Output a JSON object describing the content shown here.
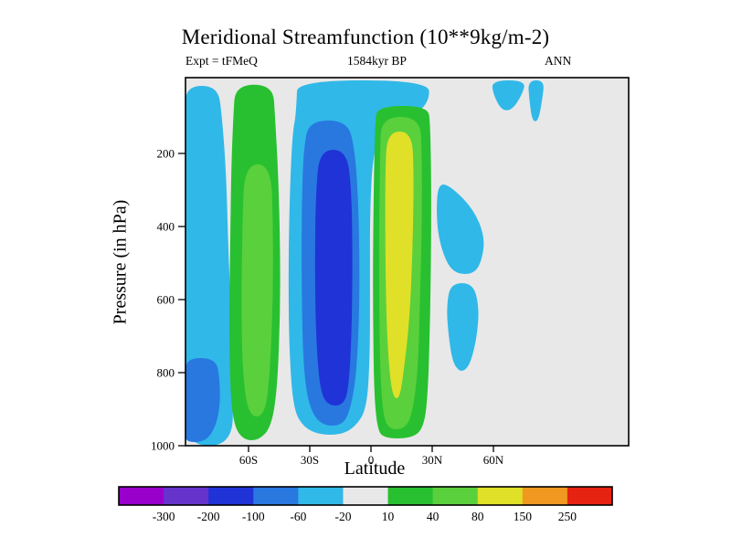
{
  "chart_data": {
    "type": "contour",
    "title": "Meridional Streamfunction (10**9kg/m-2)",
    "annotations": {
      "left": "Expt = tFMeQ",
      "center": "1584kyr BP",
      "right": "ANN"
    },
    "xlabel": "Latitude",
    "ylabel": "Pressure (in hPa)",
    "x_ticks": [
      {
        "value": -60,
        "label": "60S"
      },
      {
        "value": -30,
        "label": "30S"
      },
      {
        "value": 0,
        "label": "0"
      },
      {
        "value": 30,
        "label": "30N"
      },
      {
        "value": 60,
        "label": "60N"
      }
    ],
    "y_ticks": [
      {
        "value": 200,
        "label": "200"
      },
      {
        "value": 400,
        "label": "400"
      },
      {
        "value": 600,
        "label": "600"
      },
      {
        "value": 800,
        "label": "800"
      },
      {
        "value": 1000,
        "label": "1000"
      }
    ],
    "y_axis_range_hpa": [
      0,
      1000
    ],
    "background_band": "-20 to 10",
    "colorbar": {
      "levels": [
        "-300",
        "-200",
        "-100",
        "-60",
        "-20",
        "10",
        "40",
        "80",
        "150",
        "250"
      ],
      "colors": [
        "#9900cc",
        "#6633cc",
        "#2033d6",
        "#2878e0",
        "#30b8e8",
        "#e8e8e8",
        "#28c030",
        "#5ad03c",
        "#e0e028",
        "#f09820",
        "#e62211"
      ]
    },
    "regions": [
      {
        "name": "sh-polar-cyan",
        "band": "-60 to -20",
        "color": 4,
        "stops": [
          [
            15,
            -91,
            -75
          ],
          [
            100,
            -91,
            -73
          ],
          [
            250,
            -91,
            -71
          ],
          [
            450,
            -91,
            -70
          ],
          [
            650,
            -91,
            -68.5
          ],
          [
            850,
            -91,
            -67.5
          ],
          [
            1000,
            -91,
            -68
          ]
        ]
      },
      {
        "name": "sh-polar-blue-core",
        "band": "-100 to -60",
        "color": 3,
        "stops": [
          [
            760,
            -91,
            -76
          ],
          [
            820,
            -91,
            -74
          ],
          [
            900,
            -91,
            -74
          ],
          [
            960,
            -91,
            -77
          ],
          [
            990,
            -91,
            -82
          ]
        ]
      },
      {
        "name": "sh-ferrel-green",
        "band": "10 to 40",
        "color": 6,
        "stops": [
          [
            12,
            -66.5,
            -48
          ],
          [
            100,
            -67.5,
            -47
          ],
          [
            250,
            -68.5,
            -45.5
          ],
          [
            450,
            -69,
            -44.5
          ],
          [
            650,
            -69.5,
            -44.5
          ],
          [
            850,
            -69,
            -46
          ],
          [
            950,
            -67,
            -49
          ],
          [
            985,
            -62,
            -55
          ]
        ]
      },
      {
        "name": "sh-ferrel-green-core",
        "band": "40 to 80",
        "color": 7,
        "stops": [
          [
            230,
            -62,
            -49
          ],
          [
            400,
            -63,
            -48
          ],
          [
            600,
            -63.5,
            -48
          ],
          [
            800,
            -63,
            -49.5
          ],
          [
            920,
            -60,
            -52
          ]
        ]
      },
      {
        "name": "sh-hadley-cyan",
        "band": "-60 to -20",
        "color": 4,
        "stops": [
          [
            0,
            -36,
            28.5
          ],
          [
            60,
            -36.5,
            28.5
          ],
          [
            100,
            -37,
            20
          ],
          [
            130,
            -38,
            6
          ],
          [
            200,
            -39,
            1
          ],
          [
            350,
            -40,
            -0.5
          ],
          [
            550,
            -40.5,
            -0.5
          ],
          [
            750,
            -40,
            -0.5
          ],
          [
            900,
            -38,
            -2
          ],
          [
            950,
            -33,
            -8
          ],
          [
            970,
            -25,
            -15
          ]
        ]
      },
      {
        "name": "sh-hadley-blue",
        "band": "-100 to -60",
        "color": 3,
        "stops": [
          [
            110,
            -30,
            -12
          ],
          [
            180,
            -33,
            -8
          ],
          [
            350,
            -34,
            -6
          ],
          [
            600,
            -34,
            -5.5
          ],
          [
            800,
            -33,
            -7
          ],
          [
            900,
            -30,
            -10
          ],
          [
            945,
            -24,
            -14
          ]
        ]
      },
      {
        "name": "sh-hadley-dark-core",
        "band": "-200 to -100",
        "color": 2,
        "stops": [
          [
            190,
            -25,
            -12
          ],
          [
            300,
            -27,
            -9.5
          ],
          [
            500,
            -27.5,
            -9
          ],
          [
            700,
            -27,
            -9.5
          ],
          [
            850,
            -25,
            -11
          ],
          [
            890,
            -21,
            -14
          ]
        ]
      },
      {
        "name": "nh-hadley-green",
        "band": "10 to 40",
        "color": 6,
        "stops": [
          [
            70,
            3,
            28
          ],
          [
            120,
            2,
            29
          ],
          [
            250,
            1.5,
            29.5
          ],
          [
            450,
            1,
            29.5
          ],
          [
            650,
            1,
            29
          ],
          [
            850,
            1.5,
            28
          ],
          [
            950,
            3,
            26
          ],
          [
            980,
            6,
            20
          ]
        ]
      },
      {
        "name": "nh-hadley-green-mid",
        "band": "40 to 80",
        "color": 7,
        "stops": [
          [
            100,
            5,
            24
          ],
          [
            200,
            4.5,
            25
          ],
          [
            400,
            4,
            25
          ],
          [
            600,
            4,
            24
          ],
          [
            800,
            4.5,
            23
          ],
          [
            920,
            6,
            20
          ],
          [
            955,
            9,
            16
          ]
        ]
      },
      {
        "name": "nh-hadley-yellow-core",
        "band": "80 to 150",
        "color": 8,
        "stops": [
          [
            140,
            8,
            20
          ],
          [
            250,
            7,
            21
          ],
          [
            450,
            7,
            20.5
          ],
          [
            650,
            7.5,
            19
          ],
          [
            800,
            9,
            16
          ],
          [
            870,
            11,
            14
          ]
        ]
      },
      {
        "name": "nh-midlat-cyan-upper",
        "band": "-60 to -20",
        "color": 4,
        "stops": [
          [
            285,
            33,
            38
          ],
          [
            350,
            32,
            50
          ],
          [
            430,
            33,
            56
          ],
          [
            500,
            37,
            54
          ],
          [
            530,
            42,
            50
          ]
        ]
      },
      {
        "name": "nh-midlat-cyan-lower",
        "band": "-60 to -20",
        "color": 4,
        "stops": [
          [
            555,
            39,
            50
          ],
          [
            620,
            37,
            53
          ],
          [
            700,
            38,
            52
          ],
          [
            770,
            40,
            49
          ],
          [
            795,
            43,
            46
          ]
        ]
      },
      {
        "name": "nh-polar-cyan-a",
        "band": "-60 to -20",
        "color": 4,
        "stops": [
          [
            0,
            59,
            76
          ],
          [
            40,
            60,
            74
          ],
          [
            82,
            64,
            69
          ]
        ]
      },
      {
        "name": "nh-polar-cyan-b",
        "band": "-60 to -20",
        "color": 4,
        "stops": [
          [
            0,
            77,
            85
          ],
          [
            50,
            77.5,
            84
          ],
          [
            112,
            79,
            82
          ]
        ]
      }
    ]
  }
}
